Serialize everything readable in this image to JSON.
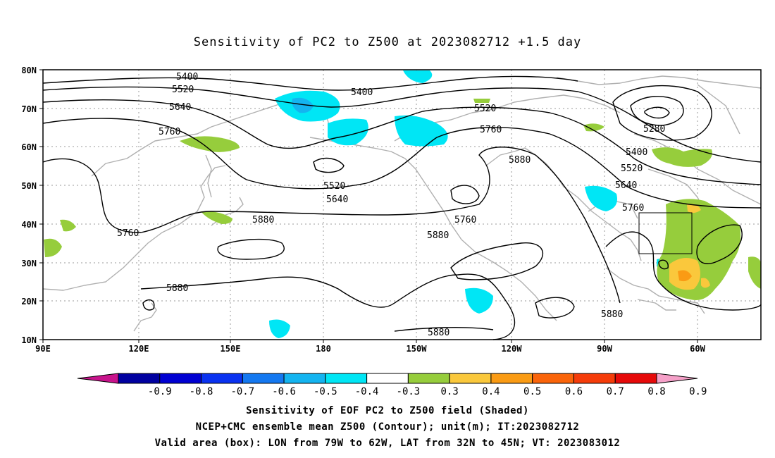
{
  "title": "Sensitivity of PC2 to Z500 at 2023082712 +1.5 day",
  "axes": {
    "lat_labels": [
      "80N",
      "70N",
      "60N",
      "50N",
      "40N",
      "30N",
      "20N",
      "10N"
    ],
    "lon_labels": [
      "90E",
      "120E",
      "150E",
      "180",
      "150W",
      "120W",
      "90W",
      "60W"
    ]
  },
  "contour_labels": [
    "5400",
    "5520",
    "5640",
    "5760",
    "5400",
    "5520",
    "5760",
    "5880",
    "5280",
    "5400",
    "5520",
    "5640",
    "5760",
    "5520",
    "5640",
    "5880",
    "5760",
    "5880",
    "5760",
    "5880",
    "5880",
    "5880"
  ],
  "colorbar": {
    "ticks": [
      "-0.9",
      "-0.8",
      "-0.7",
      "-0.6",
      "-0.5",
      "-0.4",
      "-0.3",
      "0.3",
      "0.4",
      "0.5",
      "0.6",
      "0.7",
      "0.8",
      "0.9"
    ],
    "colors": [
      "#c8148c",
      "#0000a0",
      "#0000d2",
      "#0a32f0",
      "#1478f0",
      "#14b4f0",
      "#00e6f5",
      "#ffffff",
      "#96cd3c",
      "#fac83c",
      "#fa9b14",
      "#fa640a",
      "#f53c0a",
      "#e60a0a",
      "#f5a0c8"
    ]
  },
  "captions": [
    "Sensitivity of EOF PC2 to Z500 field (Shaded)",
    "NCEP+CMC ensemble mean Z500 (Contour); unit(m); IT:2023082712",
    "Valid area (box): LON from 79W to 62W, LAT from 32N to 45N; VT: 2023083012"
  ]
}
